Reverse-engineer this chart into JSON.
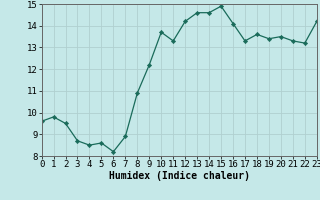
{
  "x": [
    0,
    1,
    2,
    3,
    4,
    5,
    6,
    7,
    8,
    9,
    10,
    11,
    12,
    13,
    14,
    15,
    16,
    17,
    18,
    19,
    20,
    21,
    22,
    23
  ],
  "y": [
    9.6,
    9.8,
    9.5,
    8.7,
    8.5,
    8.6,
    8.2,
    8.9,
    10.9,
    12.2,
    13.7,
    13.3,
    14.2,
    14.6,
    14.6,
    14.9,
    14.1,
    13.3,
    13.6,
    13.4,
    13.5,
    13.3,
    13.2,
    14.2
  ],
  "line_color": "#1a6b5a",
  "marker": "D",
  "marker_size": 2.2,
  "bg_color": "#c5e8e8",
  "grid_color": "#b0d0d0",
  "xlabel": "Humidex (Indice chaleur)",
  "xlabel_fontsize": 7,
  "tick_fontsize": 6.5,
  "ylim": [
    8,
    15
  ],
  "xlim": [
    0,
    23
  ],
  "yticks": [
    8,
    9,
    10,
    11,
    12,
    13,
    14,
    15
  ],
  "xticks": [
    0,
    1,
    2,
    3,
    4,
    5,
    6,
    7,
    8,
    9,
    10,
    11,
    12,
    13,
    14,
    15,
    16,
    17,
    18,
    19,
    20,
    21,
    22,
    23
  ],
  "xtick_labels": [
    "0",
    "1",
    "2",
    "3",
    "4",
    "5",
    "6",
    "7",
    "8",
    "9",
    "10",
    "11",
    "12",
    "13",
    "14",
    "15",
    "16",
    "17",
    "18",
    "19",
    "20",
    "21",
    "22",
    "23"
  ]
}
